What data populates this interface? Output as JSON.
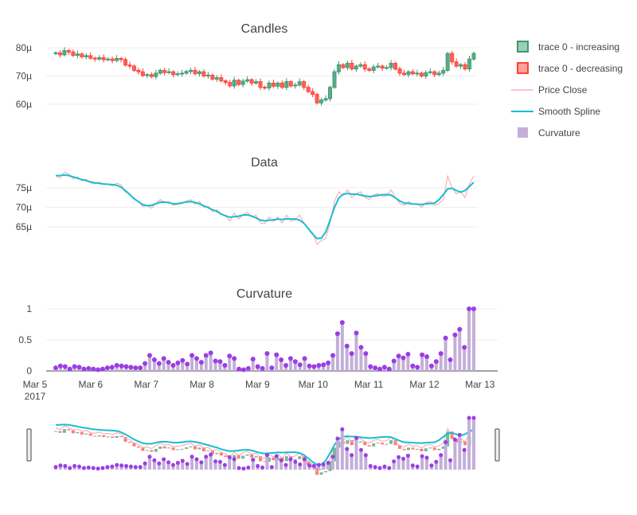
{
  "chart_data": {
    "type": "candlestick",
    "x_start": "2017-03-05 12:00",
    "x_end": "2017-03-13 00:00",
    "x_tick_labels": [
      "Mar 5\n2017",
      "Mar 6",
      "Mar 7",
      "Mar 8",
      "Mar 9",
      "Mar 10",
      "Mar 11",
      "Mar 12",
      "Mar 13"
    ],
    "panels": [
      {
        "title": "Candles",
        "ylim": [
          57,
          84
        ],
        "ytick_labels": [
          "60µ",
          "70µ",
          "80µ"
        ],
        "ytick_values": [
          60,
          70,
          80
        ]
      },
      {
        "title": "Data",
        "ylim": [
          60,
          80
        ],
        "ytick_labels": [
          "65µ",
          "70µ",
          "75µ"
        ],
        "ytick_values": [
          65,
          70,
          75
        ]
      },
      {
        "title": "Curvature",
        "ylim": [
          0,
          1.05
        ],
        "ytick_labels": [
          "0",
          "0.5",
          "1"
        ],
        "ytick_values": [
          0,
          0.5,
          1
        ]
      }
    ],
    "legend": [
      {
        "name": "trace 0 - increasing",
        "color": "#3d9970",
        "kind": "box"
      },
      {
        "name": "trace 0 - decreasing",
        "color": "#ff4136",
        "kind": "box"
      },
      {
        "name": "Price Close",
        "color": "#f4a3ad",
        "kind": "line"
      },
      {
        "name": "Smooth Spline",
        "color": "#17becf",
        "kind": "line"
      },
      {
        "name": "Curvature",
        "color": "#c3afd8",
        "kind": "bar"
      }
    ],
    "close": [
      78.2,
      77.5,
      79.0,
      78.5,
      77.3,
      77.8,
      76.8,
      77.2,
      76.3,
      76.0,
      76.5,
      75.8,
      76.0,
      75.5,
      76.2,
      75.8,
      73.9,
      73.5,
      72.0,
      71.5,
      70.2,
      70.5,
      69.8,
      71.0,
      72.0,
      71.2,
      71.5,
      70.5,
      70.8,
      71.0,
      71.6,
      72.0,
      70.8,
      71.5,
      70.0,
      70.3,
      68.9,
      69.4,
      68.3,
      67.7,
      66.5,
      68.5,
      67.0,
      68.2,
      68.7,
      67.5,
      68.0,
      66.0,
      65.8,
      67.5,
      66.4,
      67.5,
      66.0,
      68.0,
      66.5,
      66.8,
      68.0,
      66.0,
      64.5,
      63.5,
      60.5,
      61.5,
      62.0,
      66.0,
      71.5,
      74.0,
      73.0,
      74.5,
      72.5,
      73.5,
      74.0,
      72.5,
      72.0,
      73.2,
      73.5,
      72.8,
      73.0,
      74.5,
      72.5,
      71.0,
      70.5,
      71.5,
      70.8,
      71.0,
      70.0,
      71.2,
      71.5,
      70.5,
      71.0,
      72.0,
      78.0,
      75.0,
      73.5,
      74.0,
      72.5,
      76.0,
      78.0
    ],
    "open": [
      78.0,
      78.2,
      77.5,
      79.0,
      78.5,
      77.3,
      77.8,
      76.8,
      77.2,
      76.3,
      76.0,
      76.5,
      75.8,
      76.0,
      75.5,
      76.2,
      75.8,
      73.9,
      73.5,
      72.0,
      71.5,
      70.2,
      70.5,
      69.8,
      71.0,
      72.0,
      71.2,
      71.5,
      70.5,
      70.8,
      71.0,
      71.6,
      72.0,
      70.8,
      71.5,
      70.0,
      70.3,
      68.9,
      69.4,
      68.3,
      67.7,
      66.5,
      68.5,
      67.0,
      68.2,
      68.7,
      67.5,
      68.0,
      66.0,
      65.8,
      67.5,
      66.4,
      67.5,
      66.0,
      68.0,
      66.5,
      66.8,
      68.0,
      66.0,
      64.5,
      63.5,
      60.5,
      61.5,
      62.0,
      66.0,
      71.5,
      74.0,
      73.0,
      74.5,
      72.5,
      73.5,
      74.0,
      72.5,
      72.0,
      73.2,
      73.5,
      72.8,
      73.0,
      74.5,
      72.5,
      71.0,
      70.5,
      71.5,
      70.8,
      71.0,
      70.0,
      71.2,
      71.5,
      70.5,
      71.0,
      72.0,
      78.0,
      75.0,
      73.5,
      74.0,
      72.5,
      76.0
    ],
    "curvature": [
      0.05,
      0.08,
      0.07,
      0.03,
      0.07,
      0.06,
      0.03,
      0.04,
      0.03,
      0.02,
      0.03,
      0.05,
      0.06,
      0.09,
      0.08,
      0.07,
      0.06,
      0.05,
      0.05,
      0.12,
      0.25,
      0.18,
      0.12,
      0.2,
      0.14,
      0.09,
      0.13,
      0.17,
      0.11,
      0.25,
      0.2,
      0.14,
      0.25,
      0.29,
      0.16,
      0.15,
      0.09,
      0.24,
      0.2,
      0.03,
      0.02,
      0.04,
      0.19,
      0.07,
      0.04,
      0.28,
      0.05,
      0.26,
      0.18,
      0.09,
      0.2,
      0.15,
      0.1,
      0.2,
      0.08,
      0.07,
      0.09,
      0.1,
      0.13,
      0.25,
      0.6,
      0.78,
      0.4,
      0.28,
      0.61,
      0.38,
      0.28,
      0.07,
      0.05,
      0.03,
      0.06,
      0.03,
      0.16,
      0.24,
      0.21,
      0.27,
      0.08,
      0.06,
      0.26,
      0.23,
      0.08,
      0.15,
      0.28,
      0.53,
      0.18,
      0.58,
      0.67,
      0.38,
      1.0,
      1.0
    ]
  }
}
